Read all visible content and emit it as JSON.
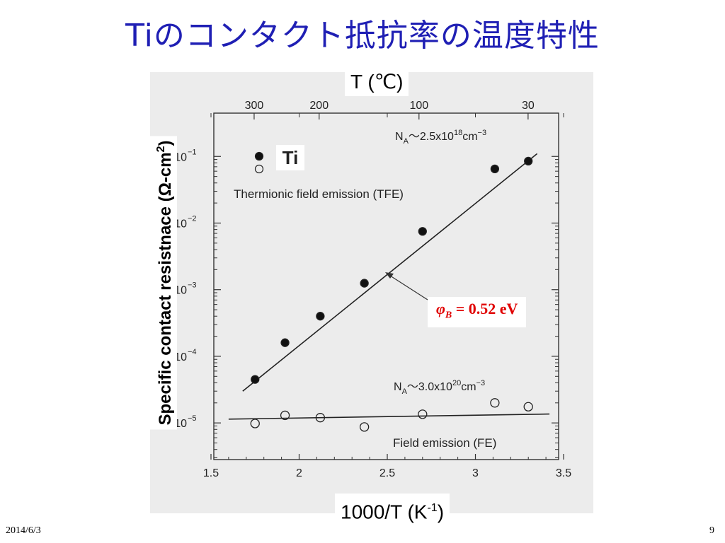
{
  "slide": {
    "title": "Tiのコンタクト抵抗率の温度特性",
    "date": "2014/6/3",
    "page": "9"
  },
  "chart_data": {
    "type": "scatter",
    "xlabel_base": "1000/T (K",
    "xlabel_sup": "-1",
    "xlabel_tail": ")",
    "ylabel_base": "Specific contact resistnace (Ω-cm",
    "ylabel_sup": "2",
    "ylabel_tail": ")",
    "top_axis_label": "T (℃)",
    "xlim": [
      1.5,
      3.5
    ],
    "x_ticks": [
      1.5,
      2,
      2.5,
      3,
      3.5
    ],
    "x_tick_labels": [
      "1.5",
      "2",
      "2.5",
      "3",
      "3.5"
    ],
    "top_ticks_celsius": [
      300,
      200,
      100,
      30
    ],
    "top_tick_labels": [
      "300",
      "200",
      "100",
      "30"
    ],
    "y_log": true,
    "ylim_exponent": [
      -5.55,
      -0.35
    ],
    "y_ticks_exponent": [
      -1,
      -2,
      -3,
      -4,
      -5
    ],
    "y_tick_labels": [
      "10",
      "10",
      "10",
      "10",
      "10"
    ],
    "y_tick_sups": [
      "−1",
      "−2",
      "−3",
      "−4",
      "−5"
    ],
    "legend_label": "Ti",
    "series": [
      {
        "marker": "filled",
        "x": [
          1.75,
          1.92,
          2.12,
          2.37,
          2.7,
          3.11,
          3.3
        ],
        "y": [
          4.5e-05,
          0.00016,
          0.0004,
          0.00125,
          0.0075,
          0.065,
          0.085
        ]
      },
      {
        "marker": "open",
        "x": [
          1.75,
          1.92,
          2.12,
          2.37,
          2.7,
          3.11,
          3.3
        ],
        "y": [
          9.8e-06,
          1.3e-05,
          1.2e-05,
          8.7e-06,
          1.35e-05,
          2e-05,
          1.75e-05
        ]
      }
    ],
    "fit_lines": [
      {
        "x": [
          1.68,
          3.35
        ],
        "y": [
          3e-05,
          0.11
        ]
      },
      {
        "x": [
          1.6,
          3.42
        ],
        "y": [
          1.14e-05,
          1.36e-05
        ]
      }
    ],
    "annotations": {
      "tfe_na": "N",
      "tfe_na_sub": "A",
      "tfe_conc": "〜2.5x10",
      "tfe_conc_sup": "18",
      "tfe_unit": "cm",
      "tfe_unit_sup": "−3",
      "tfe_label": "Thermionic field emission (TFE)",
      "fe_na": "N",
      "fe_na_sub": "A",
      "fe_conc": "〜3.0x10",
      "fe_conc_sup": "20",
      "fe_unit": "cm",
      "fe_unit_sup": "−3",
      "fe_label": "Field emission (FE)",
      "barrier_symbol": "φ",
      "barrier_sub": "B",
      "barrier_value": " = 0.52 eV"
    },
    "colors": {
      "title": "#1f1fb4",
      "barrier": "#e00000",
      "figure_bg": "#ececec"
    }
  }
}
